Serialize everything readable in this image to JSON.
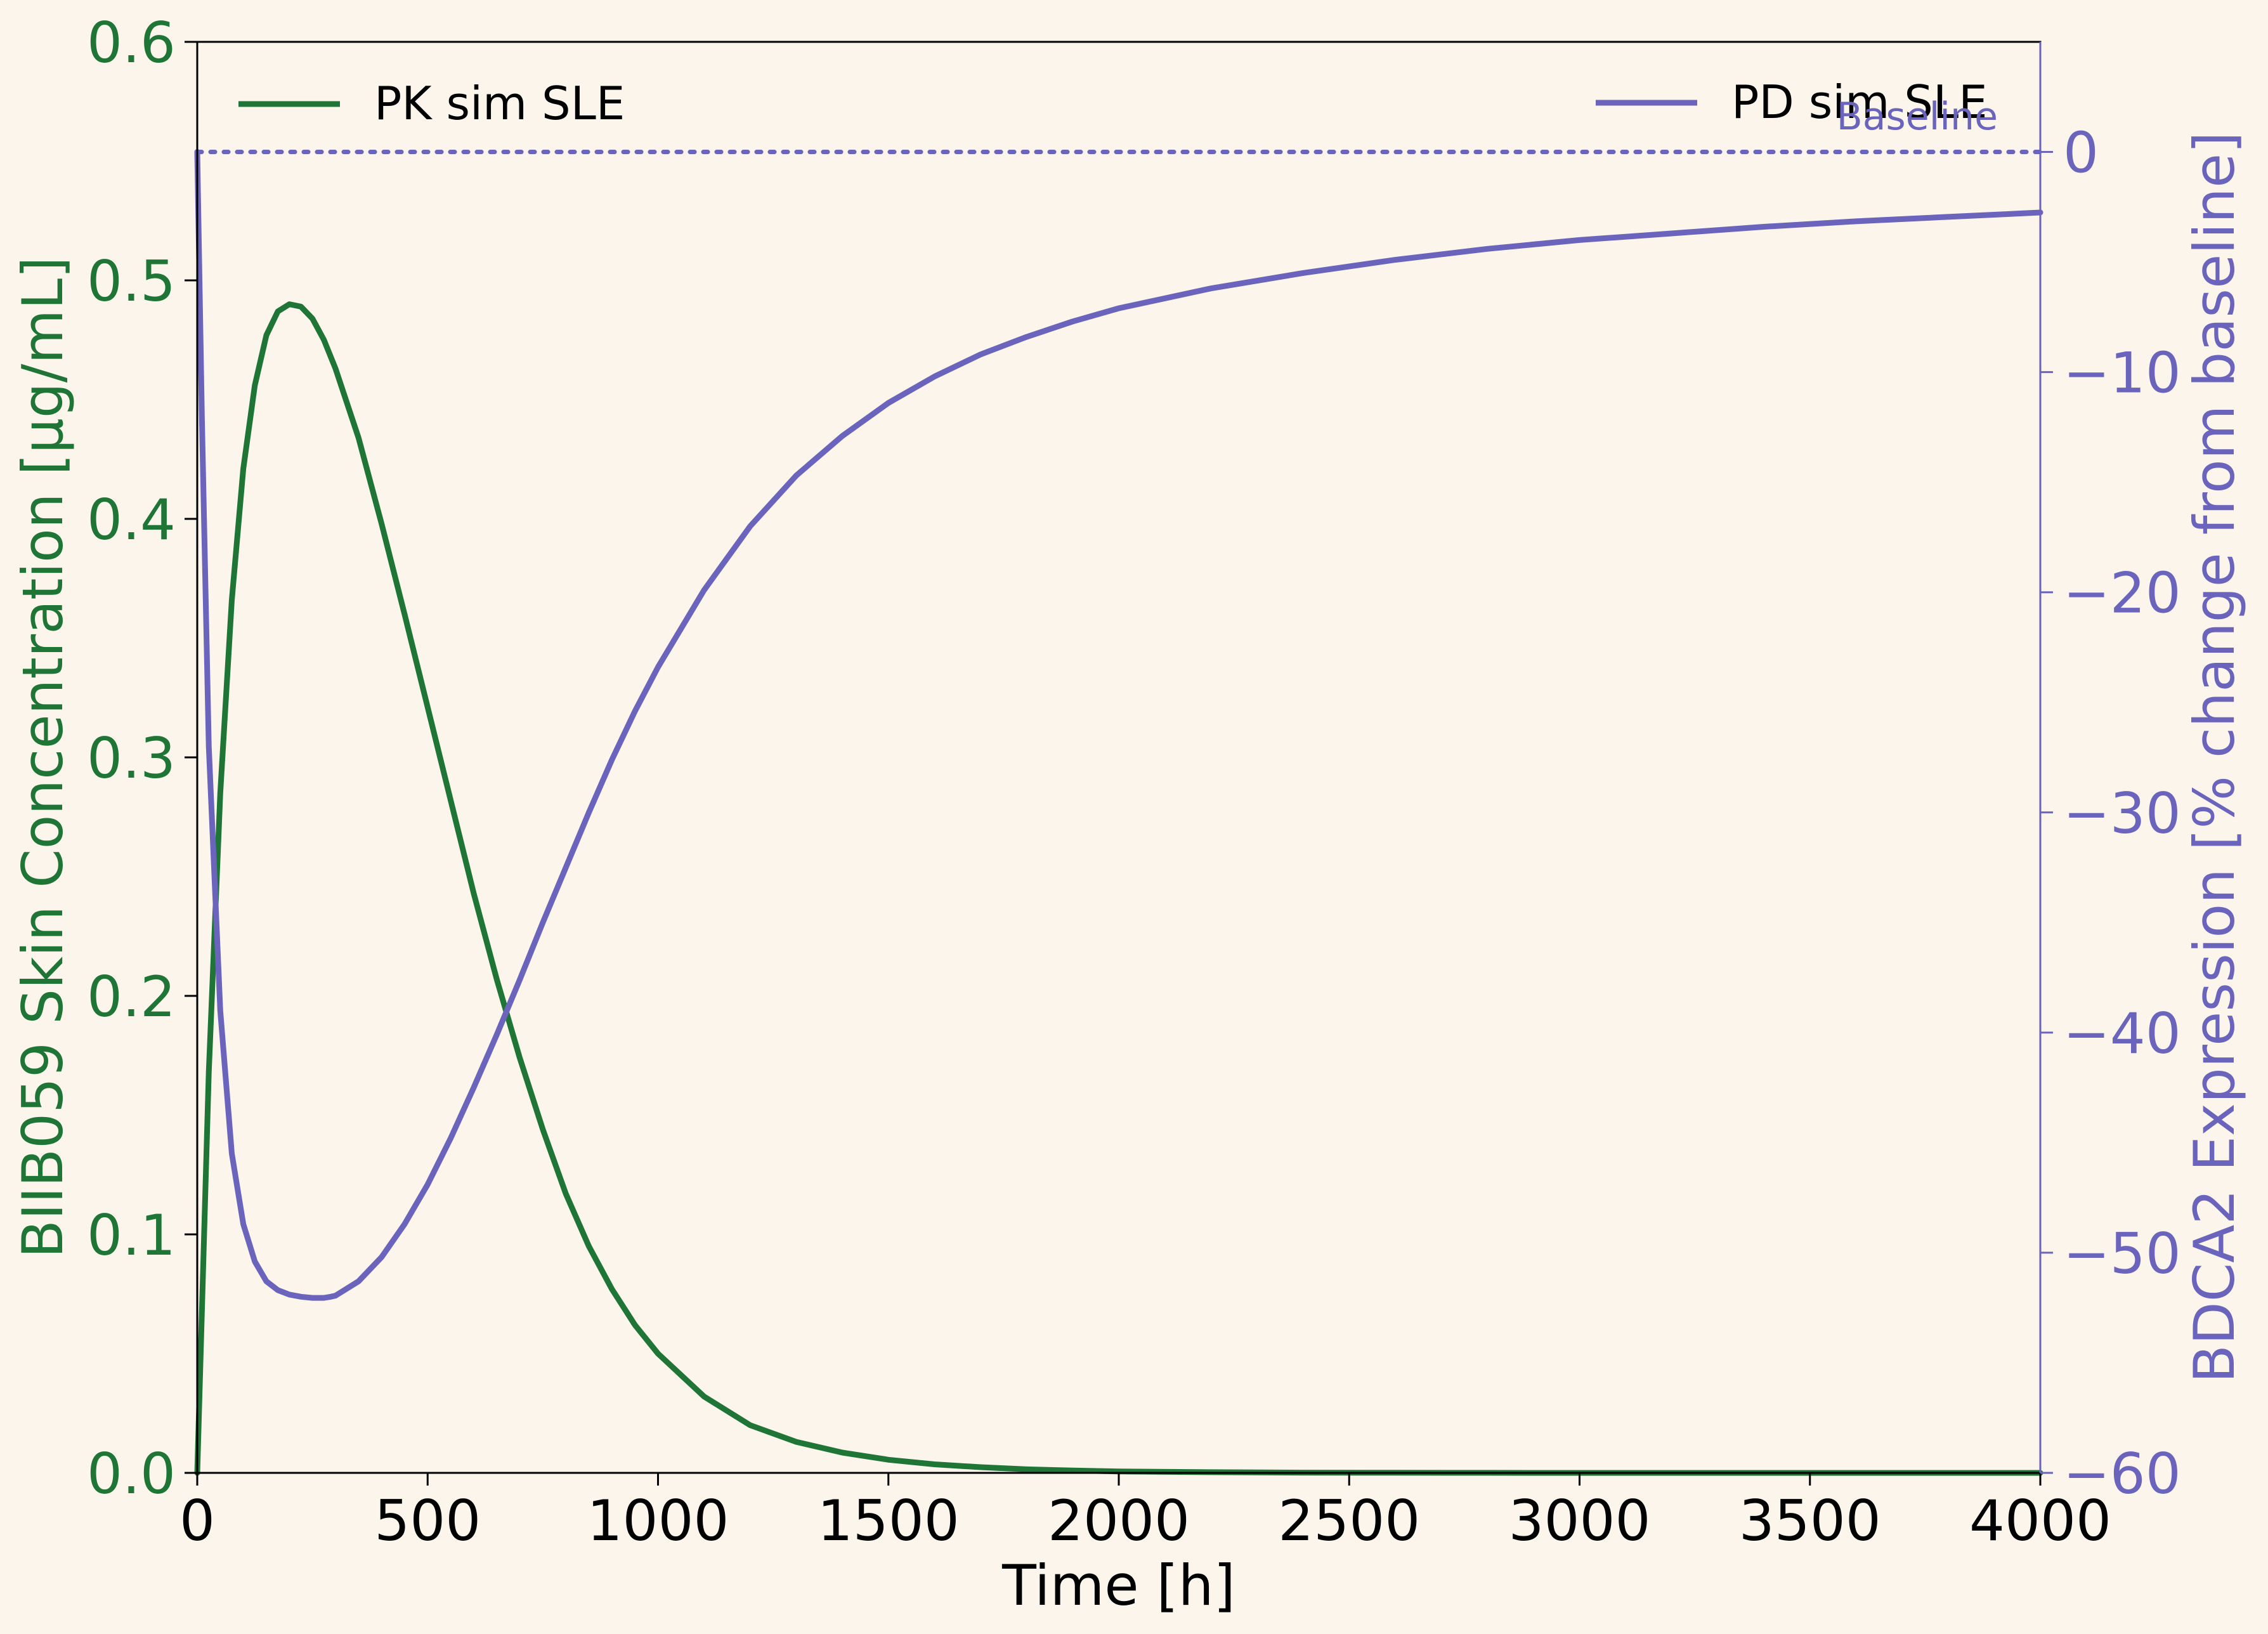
{
  "chart_data": {
    "type": "line",
    "x_axis": {
      "label": "Time [h]",
      "range": [
        0,
        4000
      ],
      "ticks": [
        0,
        500,
        1000,
        1500,
        2000,
        2500,
        3000,
        3500,
        4000
      ],
      "tick_labels": [
        "0",
        "500",
        "1000",
        "1500",
        "2000",
        "2500",
        "3000",
        "3500",
        "4000"
      ]
    },
    "y_left": {
      "label": "BIIB059 Skin Concentration [µg/mL]",
      "range": [
        0,
        0.6
      ],
      "ticks": [
        0,
        0.1,
        0.2,
        0.3,
        0.4,
        0.5,
        0.6
      ],
      "tick_labels": [
        "0.0",
        "0.1",
        "0.2",
        "0.3",
        "0.4",
        "0.5",
        "0.6"
      ],
      "color": "#1e7535"
    },
    "y_right": {
      "label": "BDCA2 Expression [% change from baseline]",
      "range": [
        -60,
        5
      ],
      "ticks": [
        0,
        -10,
        -20,
        -30,
        -40,
        -50,
        -60
      ],
      "tick_labels": [
        "0",
        "−10",
        "−20",
        "−30",
        "−40",
        "−50",
        "−60"
      ],
      "color": "#6b64bc"
    },
    "series": [
      {
        "name": "PK sim SLE",
        "axis": "left",
        "color": "#1e7535",
        "x": [
          0,
          25,
          50,
          75,
          100,
          125,
          150,
          175,
          200,
          225,
          250,
          275,
          300,
          350,
          400,
          450,
          500,
          550,
          600,
          650,
          700,
          750,
          800,
          850,
          900,
          950,
          1000,
          1100,
          1200,
          1300,
          1400,
          1500,
          1600,
          1700,
          1800,
          1900,
          2000,
          2200,
          2400,
          2600,
          2800,
          3000,
          3500,
          4000
        ],
        "y": [
          0,
          0.168,
          0.285,
          0.366,
          0.421,
          0.456,
          0.477,
          0.487,
          0.49,
          0.489,
          0.484,
          0.475,
          0.463,
          0.434,
          0.398,
          0.36,
          0.321,
          0.282,
          0.243,
          0.207,
          0.174,
          0.144,
          0.117,
          0.095,
          0.077,
          0.062,
          0.05,
          0.032,
          0.02,
          0.013,
          0.0085,
          0.0055,
          0.0036,
          0.0024,
          0.0015,
          0.001,
          0.0006,
          0.0003,
          0.0001,
          5e-05,
          2e-05,
          1e-05,
          0,
          0
        ]
      },
      {
        "name": "PD sim SLE",
        "axis": "right",
        "color": "#6b64bc",
        "x": [
          0,
          10,
          25,
          50,
          75,
          100,
          125,
          150,
          175,
          200,
          225,
          250,
          275,
          290,
          300,
          350,
          400,
          450,
          500,
          550,
          600,
          650,
          700,
          750,
          800,
          850,
          900,
          950,
          1000,
          1100,
          1200,
          1300,
          1400,
          1500,
          1600,
          1700,
          1800,
          1900,
          2000,
          2200,
          2400,
          2600,
          2800,
          3000,
          3200,
          3400,
          3600,
          3800,
          4000
        ],
        "y": [
          0,
          -12,
          -27,
          -39,
          -45.5,
          -48.7,
          -50.4,
          -51.3,
          -51.7,
          -51.9,
          -52.0,
          -52.05,
          -52.05,
          -52.0,
          -51.95,
          -51.3,
          -50.2,
          -48.7,
          -46.9,
          -44.8,
          -42.5,
          -40.1,
          -37.6,
          -35.0,
          -32.5,
          -30.0,
          -27.6,
          -25.4,
          -23.4,
          -19.9,
          -17.0,
          -14.7,
          -12.9,
          -11.4,
          -10.2,
          -9.2,
          -8.4,
          -7.7,
          -7.1,
          -6.2,
          -5.5,
          -4.9,
          -4.4,
          -4.0,
          -3.7,
          -3.4,
          -3.15,
          -2.95,
          -2.75
        ]
      }
    ],
    "reference_line": {
      "axis": "right",
      "y": 0,
      "label": "Baseline",
      "style": "dotted",
      "color": "#6b64bc"
    },
    "legends": [
      {
        "placement": "upper-left",
        "entries": [
          "PK sim SLE"
        ]
      },
      {
        "placement": "upper-right",
        "entries": [
          "PD sim SLE"
        ]
      }
    ],
    "grid": false
  }
}
